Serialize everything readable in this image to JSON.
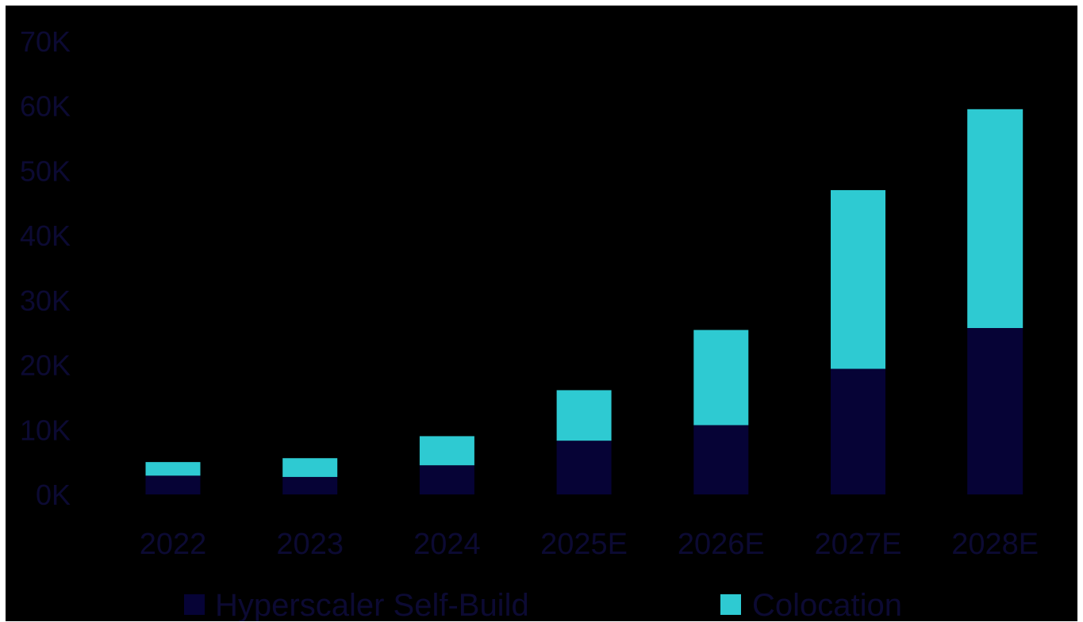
{
  "chart_data": {
    "type": "bar",
    "stacked": true,
    "categories": [
      "2022",
      "2023",
      "2024",
      "2025E",
      "2026E",
      "2027E",
      "2028E"
    ],
    "series": [
      {
        "name": "Hyperscaler Self-Build",
        "color": "#060336",
        "values": [
          2900,
          2700,
          4500,
          8300,
          10700,
          19400,
          25700
        ]
      },
      {
        "name": "Colocation",
        "color": "#2ecad2",
        "values": [
          2100,
          2900,
          4500,
          7800,
          14700,
          27600,
          33800
        ]
      }
    ],
    "ylim": [
      0,
      70000
    ],
    "yticks": [
      0,
      10000,
      20000,
      30000,
      40000,
      50000,
      60000,
      70000
    ],
    "ytick_labels": [
      "0K",
      "10K",
      "20K",
      "30K",
      "40K",
      "50K",
      "60K",
      "70K"
    ],
    "grid": false,
    "legend_position": "bottom",
    "background": "#000000",
    "text_color": "#0c0a33"
  }
}
